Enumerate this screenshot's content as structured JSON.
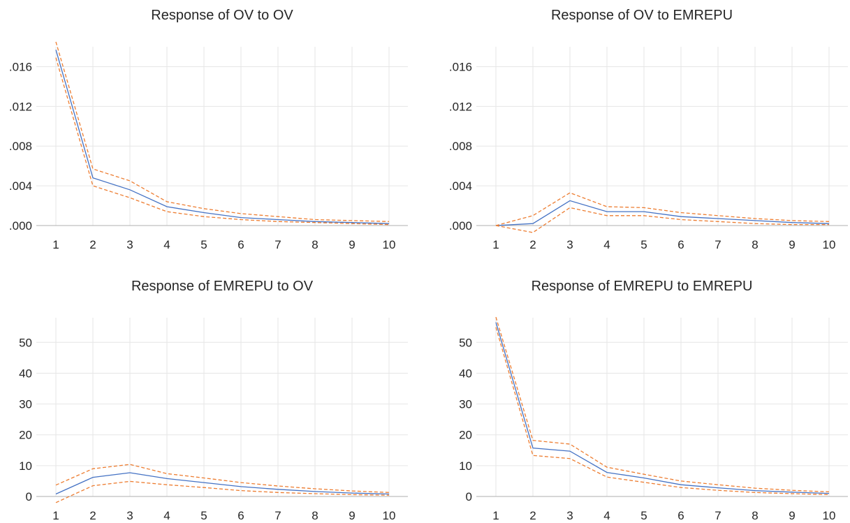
{
  "chart_data": [
    {
      "type": "line",
      "title": "Response of OV to OV",
      "x": [
        1,
        2,
        3,
        4,
        5,
        6,
        7,
        8,
        9,
        10
      ],
      "ylim": [
        0,
        0.018
      ],
      "yticks": [
        ".000",
        ".004",
        ".008",
        ".012",
        ".016"
      ],
      "ytick_values": [
        0,
        0.004,
        0.008,
        0.012,
        0.016
      ],
      "series": [
        {
          "role": "response",
          "color": "#4472c4",
          "values": [
            0.0177,
            0.0048,
            0.0036,
            0.0019,
            0.0013,
            0.0008,
            0.0006,
            0.0004,
            0.0003,
            0.0002
          ]
        },
        {
          "role": "upper",
          "color": "#ed7d31",
          "values": [
            0.0185,
            0.0057,
            0.0045,
            0.0024,
            0.0017,
            0.0012,
            0.0009,
            0.0006,
            0.0005,
            0.0004
          ]
        },
        {
          "role": "lower",
          "color": "#ed7d31",
          "values": [
            0.0169,
            0.004,
            0.0028,
            0.0014,
            0.0009,
            0.0006,
            0.0004,
            0.0003,
            0.0002,
            0.0001
          ]
        }
      ],
      "grid": true
    },
    {
      "type": "line",
      "title": "Response of OV to EMREPU",
      "x": [
        1,
        2,
        3,
        4,
        5,
        6,
        7,
        8,
        9,
        10
      ],
      "ylim": [
        0,
        0.018
      ],
      "yticks": [
        ".000",
        ".004",
        ".008",
        ".012",
        ".016"
      ],
      "ytick_values": [
        0,
        0.004,
        0.008,
        0.012,
        0.016
      ],
      "series": [
        {
          "role": "response",
          "color": "#4472c4",
          "values": [
            0.0,
            0.0002,
            0.0025,
            0.0014,
            0.0014,
            0.0009,
            0.0007,
            0.0005,
            0.0003,
            0.0002
          ]
        },
        {
          "role": "upper",
          "color": "#ed7d31",
          "values": [
            0.0,
            0.001,
            0.0033,
            0.0019,
            0.0018,
            0.0013,
            0.001,
            0.0007,
            0.0005,
            0.0004
          ]
        },
        {
          "role": "lower",
          "color": "#ed7d31",
          "values": [
            0.0,
            -0.0007,
            0.0018,
            0.001,
            0.001,
            0.0006,
            0.0004,
            0.0002,
            0.0001,
            0.0001
          ]
        }
      ],
      "grid": true
    },
    {
      "type": "line",
      "title": "Response of EMREPU to OV",
      "x": [
        1,
        2,
        3,
        4,
        5,
        6,
        7,
        8,
        9,
        10
      ],
      "ylim": [
        0,
        58
      ],
      "yticks": [
        "0",
        "10",
        "20",
        "30",
        "40",
        "50"
      ],
      "ytick_values": [
        0,
        10,
        20,
        30,
        40,
        50
      ],
      "series": [
        {
          "role": "response",
          "color": "#4472c4",
          "values": [
            0.8,
            6.2,
            7.7,
            5.8,
            4.5,
            3.2,
            2.3,
            1.6,
            1.1,
            0.8
          ]
        },
        {
          "role": "upper",
          "color": "#ed7d31",
          "values": [
            3.7,
            9.0,
            10.4,
            7.4,
            6.0,
            4.5,
            3.4,
            2.5,
            1.8,
            1.3
          ]
        },
        {
          "role": "lower",
          "color": "#ed7d31",
          "values": [
            -2.0,
            3.5,
            4.9,
            3.8,
            2.9,
            1.9,
            1.3,
            0.9,
            0.6,
            0.4
          ]
        }
      ],
      "grid": true
    },
    {
      "type": "line",
      "title": "Response of EMREPU to EMREPU",
      "x": [
        1,
        2,
        3,
        4,
        5,
        6,
        7,
        8,
        9,
        10
      ],
      "ylim": [
        0,
        58
      ],
      "yticks": [
        "0",
        "10",
        "20",
        "30",
        "40",
        "50"
      ],
      "ytick_values": [
        0,
        10,
        20,
        30,
        40,
        50
      ],
      "series": [
        {
          "role": "response",
          "color": "#4472c4",
          "values": [
            56.5,
            15.7,
            14.7,
            7.8,
            6.0,
            3.8,
            2.8,
            1.9,
            1.4,
            1.0
          ]
        },
        {
          "role": "upper",
          "color": "#ed7d31",
          "values": [
            58.2,
            18.2,
            17.0,
            9.5,
            7.2,
            5.0,
            3.8,
            2.7,
            2.0,
            1.5
          ]
        },
        {
          "role": "lower",
          "color": "#ed7d31",
          "values": [
            54.9,
            13.3,
            12.3,
            6.3,
            4.6,
            2.9,
            2.0,
            1.3,
            0.9,
            0.6
          ]
        }
      ],
      "grid": true
    }
  ]
}
